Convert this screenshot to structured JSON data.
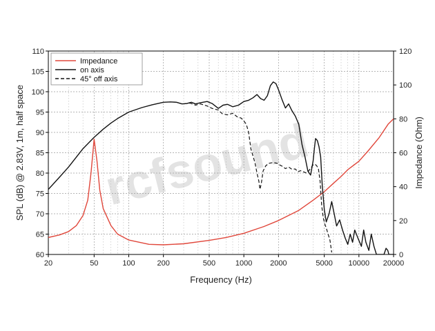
{
  "chart_data": {
    "type": "line",
    "watermark": "rcfsound",
    "xlabel": "Frequency (Hz)",
    "ylabel_left": "SPL (dB) @ 2.83V, 1m, half space",
    "ylabel_right": "Impedance (Ohm)",
    "x_scale": "log",
    "xlim": [
      20,
      20000
    ],
    "ylim_left": [
      60,
      110
    ],
    "ylim_right": [
      0,
      120
    ],
    "x_ticks": [
      20,
      50,
      100,
      200,
      500,
      1000,
      2000,
      5000,
      10000,
      20000
    ],
    "x_tick_labels": [
      "20",
      "50",
      "100",
      "200",
      "500",
      "1000",
      "2000",
      "5000",
      "10000",
      "20000"
    ],
    "y_left_ticks": [
      60,
      65,
      70,
      75,
      80,
      85,
      90,
      95,
      100,
      105,
      110
    ],
    "y_right_ticks": [
      0,
      20,
      40,
      60,
      80,
      100,
      120
    ],
    "grid": true,
    "legend_position": "top-left",
    "series": [
      {
        "name": "Impedance",
        "axis": "right",
        "color": "#e0463a",
        "style": "solid",
        "points": [
          [
            20,
            10
          ],
          [
            25,
            11.5
          ],
          [
            30,
            13.5
          ],
          [
            35,
            17
          ],
          [
            40,
            23
          ],
          [
            44,
            32
          ],
          [
            47,
            48
          ],
          [
            50,
            68
          ],
          [
            53,
            55
          ],
          [
            56,
            38
          ],
          [
            60,
            27
          ],
          [
            70,
            17
          ],
          [
            80,
            12
          ],
          [
            100,
            8.5
          ],
          [
            150,
            6
          ],
          [
            200,
            5.7
          ],
          [
            300,
            6.3
          ],
          [
            500,
            8.3
          ],
          [
            700,
            10
          ],
          [
            1000,
            12.5
          ],
          [
            1500,
            16.5
          ],
          [
            2000,
            20
          ],
          [
            3000,
            26
          ],
          [
            4000,
            32
          ],
          [
            5000,
            37
          ],
          [
            6000,
            42
          ],
          [
            7000,
            46
          ],
          [
            8000,
            50
          ],
          [
            10000,
            55
          ],
          [
            12000,
            61
          ],
          [
            15000,
            69
          ],
          [
            18000,
            77
          ],
          [
            20000,
            80
          ]
        ]
      },
      {
        "name": "on axis",
        "axis": "left",
        "color": "#111111",
        "style": "solid",
        "points": [
          [
            20,
            76
          ],
          [
            25,
            79
          ],
          [
            30,
            81.5
          ],
          [
            40,
            86
          ],
          [
            50,
            88.8
          ],
          [
            60,
            90.8
          ],
          [
            70,
            92.3
          ],
          [
            80,
            93.4
          ],
          [
            100,
            95
          ],
          [
            130,
            96.1
          ],
          [
            160,
            96.8
          ],
          [
            200,
            97.4
          ],
          [
            230,
            97.5
          ],
          [
            260,
            97.4
          ],
          [
            290,
            97.0
          ],
          [
            320,
            97.1
          ],
          [
            350,
            97.4
          ],
          [
            380,
            97.0
          ],
          [
            420,
            97.3
          ],
          [
            480,
            97.6
          ],
          [
            530,
            97.1
          ],
          [
            600,
            95.9
          ],
          [
            660,
            96.7
          ],
          [
            720,
            96.9
          ],
          [
            800,
            96.3
          ],
          [
            900,
            96.7
          ],
          [
            1000,
            97.6
          ],
          [
            1100,
            97.9
          ],
          [
            1200,
            98.5
          ],
          [
            1300,
            99.3
          ],
          [
            1400,
            98.3
          ],
          [
            1500,
            97.9
          ],
          [
            1600,
            99.0
          ],
          [
            1700,
            101.5
          ],
          [
            1800,
            102.4
          ],
          [
            1900,
            102.0
          ],
          [
            2000,
            100.5
          ],
          [
            2150,
            98.0
          ],
          [
            2300,
            96.0
          ],
          [
            2450,
            97.0
          ],
          [
            2600,
            95.5
          ],
          [
            2800,
            94.0
          ],
          [
            3000,
            92.0
          ],
          [
            3200,
            87.0
          ],
          [
            3400,
            84.0
          ],
          [
            3600,
            80.5
          ],
          [
            3800,
            79.5
          ],
          [
            4000,
            83.0
          ],
          [
            4100,
            86.0
          ],
          [
            4200,
            88.5
          ],
          [
            4350,
            88.0
          ],
          [
            4500,
            86.5
          ],
          [
            4650,
            84.0
          ],
          [
            4800,
            77.0
          ],
          [
            5000,
            71.0
          ],
          [
            5200,
            68.0
          ],
          [
            5500,
            70.0
          ],
          [
            5800,
            73.0
          ],
          [
            6100,
            70.0
          ],
          [
            6400,
            67.0
          ],
          [
            6800,
            68.5
          ],
          [
            7200,
            66.0
          ],
          [
            7600,
            64.0
          ],
          [
            8000,
            62.5
          ],
          [
            8400,
            65.0
          ],
          [
            8800,
            63.0
          ],
          [
            9200,
            66.0
          ],
          [
            9800,
            64.0
          ],
          [
            10500,
            62.0
          ],
          [
            11000,
            66.0
          ],
          [
            11500,
            63.0
          ],
          [
            12200,
            61.0
          ],
          [
            12800,
            65.0
          ],
          [
            13500,
            62.0
          ],
          [
            14200,
            60.0
          ],
          [
            16500,
            60.0
          ],
          [
            17200,
            61.5
          ],
          [
            17800,
            61.0
          ],
          [
            18200,
            60.0
          ],
          [
            20000,
            60.0
          ]
        ]
      },
      {
        "name": "45° off axis",
        "axis": "left",
        "color": "#111111",
        "style": "dashed",
        "points": [
          [
            300,
            97.0
          ],
          [
            340,
            97.2
          ],
          [
            380,
            96.7
          ],
          [
            420,
            97.0
          ],
          [
            480,
            96.5
          ],
          [
            530,
            95.9
          ],
          [
            600,
            95.5
          ],
          [
            650,
            94.6
          ],
          [
            720,
            94.3
          ],
          [
            800,
            94.7
          ],
          [
            880,
            93.8
          ],
          [
            950,
            93.5
          ],
          [
            1000,
            92.8
          ],
          [
            1050,
            92.0
          ],
          [
            1100,
            90.0
          ],
          [
            1150,
            86.0
          ],
          [
            1200,
            84.2
          ],
          [
            1250,
            82.5
          ],
          [
            1300,
            80.0
          ],
          [
            1350,
            78.0
          ],
          [
            1380,
            76.0
          ],
          [
            1420,
            77.5
          ],
          [
            1470,
            80.5
          ],
          [
            1550,
            81.8
          ],
          [
            1650,
            82.4
          ],
          [
            1800,
            82.6
          ],
          [
            1950,
            82.4
          ],
          [
            2050,
            82.0
          ],
          [
            2150,
            81.7
          ],
          [
            2300,
            81.1
          ],
          [
            2450,
            81.5
          ],
          [
            2600,
            81.0
          ],
          [
            2800,
            81.0
          ],
          [
            2950,
            80.3
          ],
          [
            3100,
            80.6
          ],
          [
            3300,
            80.3
          ],
          [
            3500,
            80.0
          ],
          [
            3650,
            80.5
          ],
          [
            3800,
            81.2
          ],
          [
            4000,
            82.0
          ],
          [
            4150,
            82.2
          ],
          [
            4300,
            81.8
          ],
          [
            4450,
            81.0
          ],
          [
            4600,
            78.0
          ],
          [
            4750,
            72.0
          ],
          [
            4900,
            69.0
          ],
          [
            5050,
            67.5
          ],
          [
            5200,
            66.5
          ],
          [
            5400,
            65.0
          ],
          [
            5600,
            63.5
          ],
          [
            5800,
            60.5
          ]
        ]
      }
    ]
  }
}
